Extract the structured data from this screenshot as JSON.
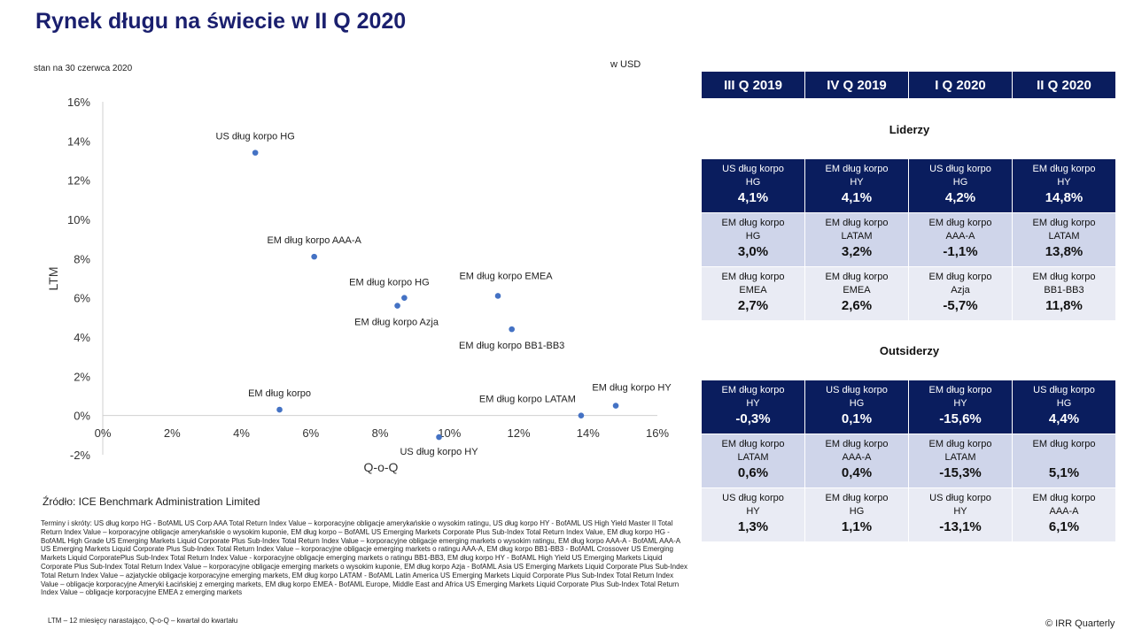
{
  "title": "Rynek długu na świecie w II Q 2020",
  "as_of": "stan na 30 czerwca 2020",
  "unit": "w USD",
  "chart_data": {
    "type": "scatter",
    "xlabel": "Q-o-Q",
    "ylabel": "LTM",
    "xlim": [
      0,
      16
    ],
    "ylim": [
      -2,
      16
    ],
    "x_ticks": [
      "0%",
      "2%",
      "4%",
      "6%",
      "8%",
      "10%",
      "12%",
      "14%",
      "16%"
    ],
    "y_ticks": [
      "-2%",
      "0%",
      "2%",
      "4%",
      "6%",
      "8%",
      "10%",
      "12%",
      "14%",
      "16%"
    ],
    "color": "#4472c4",
    "points": [
      {
        "label": "US dług korpo HG",
        "x": 4.4,
        "y": 13.4
      },
      {
        "label": "EM dług korpo AAA-A",
        "x": 6.1,
        "y": 8.1
      },
      {
        "label": "EM dług korpo HG",
        "x": 8.7,
        "y": 6.0
      },
      {
        "label": "EM dług korpo Azja",
        "x": 8.5,
        "y": 5.6
      },
      {
        "label": "EM dług korpo EMEA",
        "x": 11.4,
        "y": 6.1
      },
      {
        "label": "EM dług korpo BB1-BB3",
        "x": 11.8,
        "y": 4.4
      },
      {
        "label": "EM dług korpo",
        "x": 5.1,
        "y": 0.3
      },
      {
        "label": "EM dług korpo LATAM",
        "x": 13.8,
        "y": 0.0
      },
      {
        "label": "EM dług korpo HY",
        "x": 14.8,
        "y": 0.5
      },
      {
        "label": "US dług korpo HY",
        "x": 9.7,
        "y": -1.1
      }
    ]
  },
  "table": {
    "quarters": [
      "III Q 2019",
      "IV Q 2019",
      "I Q 2020",
      "II Q 2020"
    ],
    "leaders_title": "Liderzy",
    "leaders": [
      [
        {
          "l1": "US dług korpo",
          "l2": "HG",
          "v": "4,1%"
        },
        {
          "l1": "EM dług korpo",
          "l2": "HY",
          "v": "4,1%"
        },
        {
          "l1": "US dług korpo",
          "l2": "HG",
          "v": "4,2%"
        },
        {
          "l1": "EM dług korpo",
          "l2": "HY",
          "v": "14,8%"
        }
      ],
      [
        {
          "l1": "EM dług korpo",
          "l2": "HG",
          "v": "3,0%"
        },
        {
          "l1": "EM dług korpo",
          "l2": "LATAM",
          "v": "3,2%"
        },
        {
          "l1": "EM dług korpo",
          "l2": "AAA-A",
          "v": "-1,1%"
        },
        {
          "l1": "EM dług korpo",
          "l2": "LATAM",
          "v": "13,8%"
        }
      ],
      [
        {
          "l1": "EM dług korpo",
          "l2": "EMEA",
          "v": "2,7%"
        },
        {
          "l1": "EM dług korpo",
          "l2": "EMEA",
          "v": "2,6%"
        },
        {
          "l1": "EM dług korpo",
          "l2": "Azja",
          "v": "-5,7%"
        },
        {
          "l1": "EM dług korpo",
          "l2": "BB1-BB3",
          "v": "11,8%"
        }
      ]
    ],
    "outsiders_title": "Outsiderzy",
    "outsiders": [
      [
        {
          "l1": "EM dług korpo",
          "l2": "HY",
          "v": "-0,3%"
        },
        {
          "l1": "US dług korpo",
          "l2": "HG",
          "v": "0,1%"
        },
        {
          "l1": "EM dług korpo",
          "l2": "HY",
          "v": "-15,6%"
        },
        {
          "l1": "US dług korpo",
          "l2": "HG",
          "v": "4,4%"
        }
      ],
      [
        {
          "l1": "EM dług korpo",
          "l2": "LATAM",
          "v": "0,6%"
        },
        {
          "l1": "EM dług korpo",
          "l2": "AAA-A",
          "v": "0,4%"
        },
        {
          "l1": "EM dług korpo",
          "l2": "LATAM",
          "v": "-15,3%"
        },
        {
          "l1": "EM dług korpo",
          "l2": "",
          "v": "5,1%"
        }
      ],
      [
        {
          "l1": "US dług korpo",
          "l2": "HY",
          "v": "1,3%"
        },
        {
          "l1": "EM dług korpo",
          "l2": "HG",
          "v": "1,1%"
        },
        {
          "l1": "US dług korpo",
          "l2": "HY",
          "v": "-13,1%"
        },
        {
          "l1": "EM dług korpo",
          "l2": "AAA-A",
          "v": "6,1%"
        }
      ]
    ]
  },
  "source": "Źródło: ICE Benchmark Administration Limited",
  "terms": "Terminy i skróty: US dług korpo HG - BofAML US Corp AAA Total Return Index Value – korporacyjne obligacje amerykańskie o wysokim ratingu, US dług korpo HY - BofAML US High Yield Master II Total Return Index Value – korporacyjne obligacje amerykańskie o wysokim kuponie, EM dług korpo – BofAML US Emerging Markets Corporate Plus Sub-Index Total Return Index Value, EM dług korpo HG - BofAML High Grade US Emerging Markets Liquid Corporate Plus Sub-Index Total Return Index Value – korporacyjne obligacje emerging markets o wysokim ratingu, EM dług korpo AAA-A - BofAML AAA-A US Emerging Markets Liquid Corporate Plus Sub-Index Total Return Index Value – korporacyjne obligacje emerging markets o ratingu AAA-A, EM dług korpo BB1-BB3 - BofAML Crossover US Emerging Markets Liquid CorporatePlus Sub-Index Total Return Index Value - korporacyjne obligacje emerging markets o ratingu BB1-BB3, EM dług korpo HY - BofAML High Yield US Emerging Markets Liquid Corporate Plus Sub-Index Total Return Index Value – korporacyjne obligacje emerging markets o wysokim kuponie, EM dług korpo Azja - BofAML Asia US Emerging Markets Liquid Corporate Plus Sub-Index Total Return Index Value – azjatyckie obligacje korporacyjne emerging markets, EM dług korpo LATAM - BofAML Latin America US Emerging Markets Liquid Corporate Plus Sub-Index Total Return Index Value – obligacje korporacyjne Ameryki Łacińskiej z emerging markets, EM dług korpo EMEA - BofAML Europe, Middle East and Africa US Emerging Markets Liquid Corporate Plus Sub-Index Total Return Index Value – obligacje korporacyjne EMEA z emerging markets",
  "abbreviations": "LTM – 12 miesięcy narastająco, Q-o-Q – kwartał do kwartału",
  "copyright": "© IRR Quarterly"
}
